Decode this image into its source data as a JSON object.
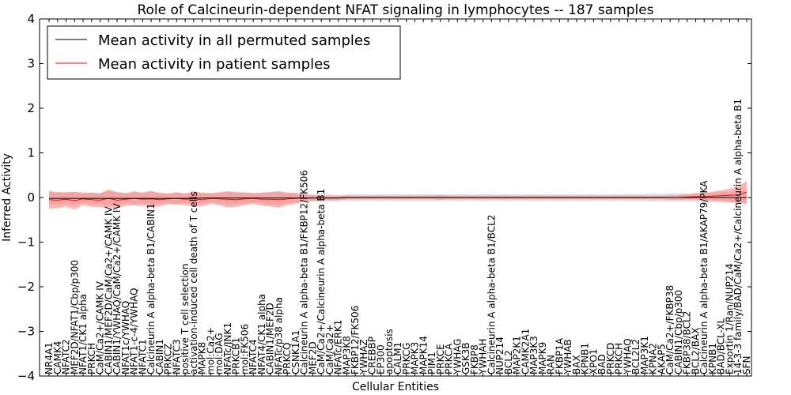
{
  "chart_data": {
    "type": "line",
    "title": "Role of Calcineurin-dependent NFAT signaling in lymphocytes -- 187 samples",
    "xlabel": "Cellular Entities",
    "ylabel": "Inferred Activity",
    "ylim": [
      -4,
      4
    ],
    "yticks": [
      "−4",
      "−3",
      "−2",
      "−1",
      "0",
      "1",
      "2",
      "3",
      "4"
    ],
    "grid": false,
    "legend_position": "top-left",
    "categories": [
      "NR4A1",
      "CAMK4",
      "NFATC2",
      "MEF2D/NFAT1/Cbp/p300",
      "NFAT1/CK1 alpha",
      "PRKCH",
      "CaM/Ca2+/CAMK IV",
      "CABIN1/MEF2D/CaM/Ca2+/CAMK IV",
      "CABIN1/YWHAQ/CaM/Ca2+/CAMK IV",
      "NFAT1c/YWHAQ",
      "NFAT1-c-4/YWHAQ",
      "NFATC1",
      "Calcineurin A alpha-beta B1/CABIN1",
      "CABIN1",
      "PRKCZ",
      "NFATC3",
      "positive T cell selection",
      "activation-induced cell death of T cells",
      "MAPK8",
      "mol:Ca2+",
      "mol:DAG",
      "NFATc/JNK1",
      "PRKCB1",
      "mol:FK506",
      "NFATC4",
      "NFAT4/CK1 alpha",
      "CABIN1/MEF2D",
      "NFATc/p38 alpha",
      "PRKCQ",
      "CSNK1A1",
      "Calcineurin A alpha-beta B1/FKBP12/FK506",
      "MEF2D",
      "CaM/Ca2+/Calcineurin A alpha-beta B1",
      "CaM/Ca2+",
      "NFATc/ERK1",
      "MAP3K8",
      "FKBP12/FK506",
      "YWHAZ",
      "CREBBP",
      "EP300",
      "apoptosis",
      "CALM1",
      "PRKCG",
      "MAPK3",
      "MAPK14",
      "PIM1",
      "PRKCE",
      "PRKCA",
      "YWHAG",
      "GSK3B",
      "FKBP8",
      "YWHAH",
      "Calcineurin A alpha-beta B1/BCL2",
      "NUP214",
      "BCL2",
      "MAP2K1",
      "CAMK2A1",
      "MAP3K3",
      "MAPK9",
      "RAN",
      "FKBP1A",
      "YWHAB",
      "BAX",
      "KPNB1",
      "XPO1",
      "BAD",
      "PRKCD",
      "PRKCH",
      "YWHAQ",
      "BCL2L2",
      "MAP3K1",
      "KPNA2",
      "AKAP5",
      "CaM/Ca2+/FKBP38",
      "CABIN1/Cbp/p300",
      "FKBP38/BCL2",
      "BCL2/BAX",
      "Calcineurin A alpha-beta B1/AKAP79/PKA",
      "KPNB1",
      "BAD/BCL-XL",
      "Exportin 1/Ran/NUP214",
      "14-3-3 family/BAD/CaM/Ca2+/Calcineurin A alpha-beta B1",
      "SFN"
    ],
    "series": [
      {
        "name": "Mean activity in all permuted samples",
        "color": "#000000",
        "band_color": "#bbbbbb",
        "values": [
          -0.02,
          -0.02,
          -0.02,
          -0.02,
          -0.02,
          -0.02,
          -0.02,
          -0.02,
          -0.02,
          -0.02,
          -0.02,
          -0.02,
          -0.02,
          -0.02,
          -0.02,
          -0.02,
          -0.02,
          -0.02,
          -0.01,
          -0.01,
          -0.01,
          -0.01,
          -0.01,
          -0.01,
          -0.01,
          -0.01,
          -0.01,
          -0.01,
          -0.01,
          -0.01,
          -0.01,
          -0.01,
          -0.01,
          -0.01,
          -0.01,
          0,
          0,
          0,
          0,
          0,
          0,
          0,
          0,
          0,
          0,
          0,
          0,
          0,
          0,
          0,
          0,
          0,
          0,
          0,
          0,
          0,
          0,
          0,
          0,
          0,
          0,
          0,
          0,
          0,
          0,
          0,
          0,
          0,
          0,
          0,
          0,
          0,
          0,
          0,
          0,
          0,
          0,
          0,
          0,
          0,
          0,
          0,
          0
        ],
        "band": [
          0.12,
          0.14,
          0.12,
          0.15,
          0.1,
          0.13,
          0.12,
          0.16,
          0.14,
          0.1,
          0.13,
          0.12,
          0.15,
          0.12,
          0.1,
          0.12,
          0.1,
          0.14,
          0.12,
          0.1,
          0.12,
          0.15,
          0.14,
          0.12,
          0.1,
          0.12,
          0.14,
          0.16,
          0.12,
          0.1,
          0.1,
          0.08,
          0.09,
          0.08,
          0.07,
          0.07,
          0.08,
          0.07,
          0.07,
          0.08,
          0.07,
          0.08,
          0.07,
          0.08,
          0.07,
          0.08,
          0.07,
          0.07,
          0.08,
          0.07,
          0.07,
          0.08,
          0.07,
          0.07,
          0.08,
          0.07,
          0.07,
          0.08,
          0.07,
          0.07,
          0.08,
          0.07,
          0.07,
          0.08,
          0.07,
          0.07,
          0.08,
          0.07,
          0.08,
          0.08,
          0.08,
          0.09,
          0.08,
          0.09,
          0.1,
          0.09,
          0.1,
          0.1,
          0.11,
          0.12,
          0.12,
          0.14,
          0.16
        ]
      },
      {
        "name": "Mean activity in patient samples",
        "color": "#ff0000",
        "band_color": "#ff7777",
        "values": [
          -0.05,
          -0.06,
          -0.04,
          -0.07,
          -0.03,
          -0.05,
          -0.06,
          -0.02,
          -0.06,
          -0.04,
          -0.02,
          -0.04,
          -0.03,
          -0.05,
          -0.03,
          -0.02,
          -0.04,
          -0.03,
          -0.05,
          -0.02,
          -0.03,
          -0.04,
          -0.05,
          -0.03,
          -0.02,
          -0.04,
          -0.04,
          -0.05,
          -0.03,
          -0.02,
          -0.01,
          -0.01,
          -0.01,
          -0.01,
          -0.01,
          0,
          0,
          0,
          0,
          0,
          0,
          0,
          0,
          0,
          0,
          0,
          0,
          0,
          0,
          0,
          0,
          0,
          0,
          0,
          0,
          0,
          0,
          0,
          0,
          0,
          0,
          0,
          0,
          0,
          0,
          0,
          0,
          0,
          0,
          0,
          0,
          0,
          0,
          0,
          0,
          0.01,
          0.02,
          0.02,
          0.03,
          0.04,
          0.05,
          0.06,
          0.12
        ],
        "band": [
          0.2,
          0.18,
          0.16,
          0.2,
          0.14,
          0.16,
          0.15,
          0.2,
          0.18,
          0.14,
          0.16,
          0.15,
          0.18,
          0.15,
          0.12,
          0.14,
          0.13,
          0.17,
          0.15,
          0.12,
          0.14,
          0.18,
          0.16,
          0.14,
          0.12,
          0.14,
          0.16,
          0.18,
          0.14,
          0.12,
          0.08,
          0.06,
          0.05,
          0.05,
          0.05,
          0.04,
          0.04,
          0.04,
          0.04,
          0.04,
          0.04,
          0.04,
          0.04,
          0.04,
          0.04,
          0.04,
          0.05,
          0.04,
          0.04,
          0.04,
          0.04,
          0.04,
          0.04,
          0.04,
          0.04,
          0.04,
          0.04,
          0.04,
          0.04,
          0.04,
          0.04,
          0.04,
          0.04,
          0.04,
          0.04,
          0.04,
          0.04,
          0.04,
          0.04,
          0.04,
          0.04,
          0.04,
          0.04,
          0.05,
          0.05,
          0.06,
          0.07,
          0.08,
          0.1,
          0.12,
          0.15,
          0.18,
          0.25
        ]
      }
    ]
  }
}
